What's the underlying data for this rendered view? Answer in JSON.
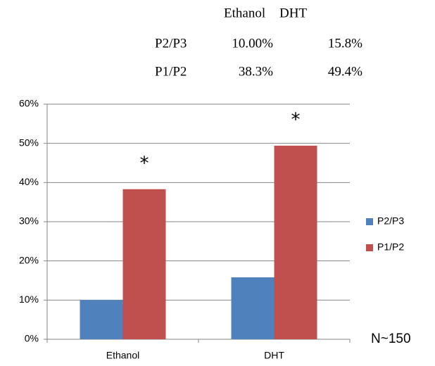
{
  "table": {
    "header": [
      "Ethanol",
      "DHT"
    ],
    "rows": [
      [
        "P2/P3",
        "10.00%",
        "15.8%"
      ],
      [
        "P1/P2",
        "38.3%",
        "49.4%"
      ]
    ]
  },
  "chart_data": {
    "type": "bar",
    "categories": [
      "Ethanol",
      "DHT"
    ],
    "series": [
      {
        "name": "P2/P3",
        "color": "#4f81bd",
        "values": [
          10,
          15.8
        ]
      },
      {
        "name": "P1/P2",
        "color": "#c0504d",
        "values": [
          38.3,
          49.4
        ]
      }
    ],
    "ylim": [
      0,
      60
    ],
    "yticks": [
      {
        "value": 0,
        "label": "0%"
      },
      {
        "value": 10,
        "label": "10%"
      },
      {
        "value": 20,
        "label": "20%"
      },
      {
        "value": 30,
        "label": "30%"
      },
      {
        "value": 40,
        "label": "40%"
      },
      {
        "value": 50,
        "label": "50%"
      },
      {
        "value": 60,
        "label": "60%"
      }
    ],
    "grid": true,
    "legend": "right",
    "significance": [
      "*",
      "*"
    ],
    "note": "N~150"
  }
}
